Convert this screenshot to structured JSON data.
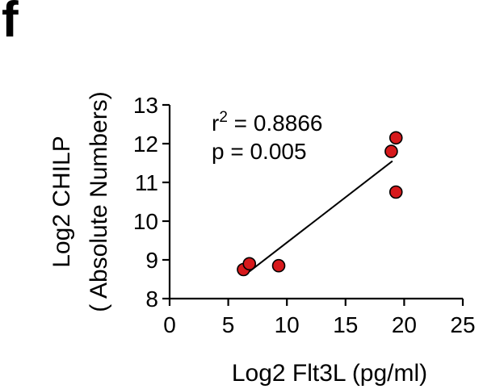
{
  "panel_label": "f",
  "chart_data": {
    "type": "scatter",
    "xlabel": "Log2 Flt3L (pg/ml)",
    "ylabel_line1": "Log2 CHILP",
    "ylabel_line2": "( Absolute Numbers)",
    "xlim": [
      0,
      25
    ],
    "ylim": [
      8,
      13
    ],
    "xticks": [
      0,
      5,
      10,
      15,
      20,
      25
    ],
    "yticks": [
      8,
      9,
      10,
      11,
      12,
      13
    ],
    "points": [
      {
        "x": 6.3,
        "y": 8.75
      },
      {
        "x": 6.8,
        "y": 8.9
      },
      {
        "x": 9.3,
        "y": 8.85
      },
      {
        "x": 18.9,
        "y": 11.8
      },
      {
        "x": 19.3,
        "y": 12.15
      },
      {
        "x": 19.3,
        "y": 10.75
      }
    ],
    "regression": {
      "x1": 6.8,
      "y1": 8.7,
      "x2": 19.0,
      "y2": 11.55
    },
    "annotation": {
      "r_base": "r",
      "r_sup": "2",
      "r_value": " = 0.8866",
      "p_text": "p = 0.005"
    },
    "point_color": "#d7191c",
    "grid": false,
    "legend": "none"
  }
}
